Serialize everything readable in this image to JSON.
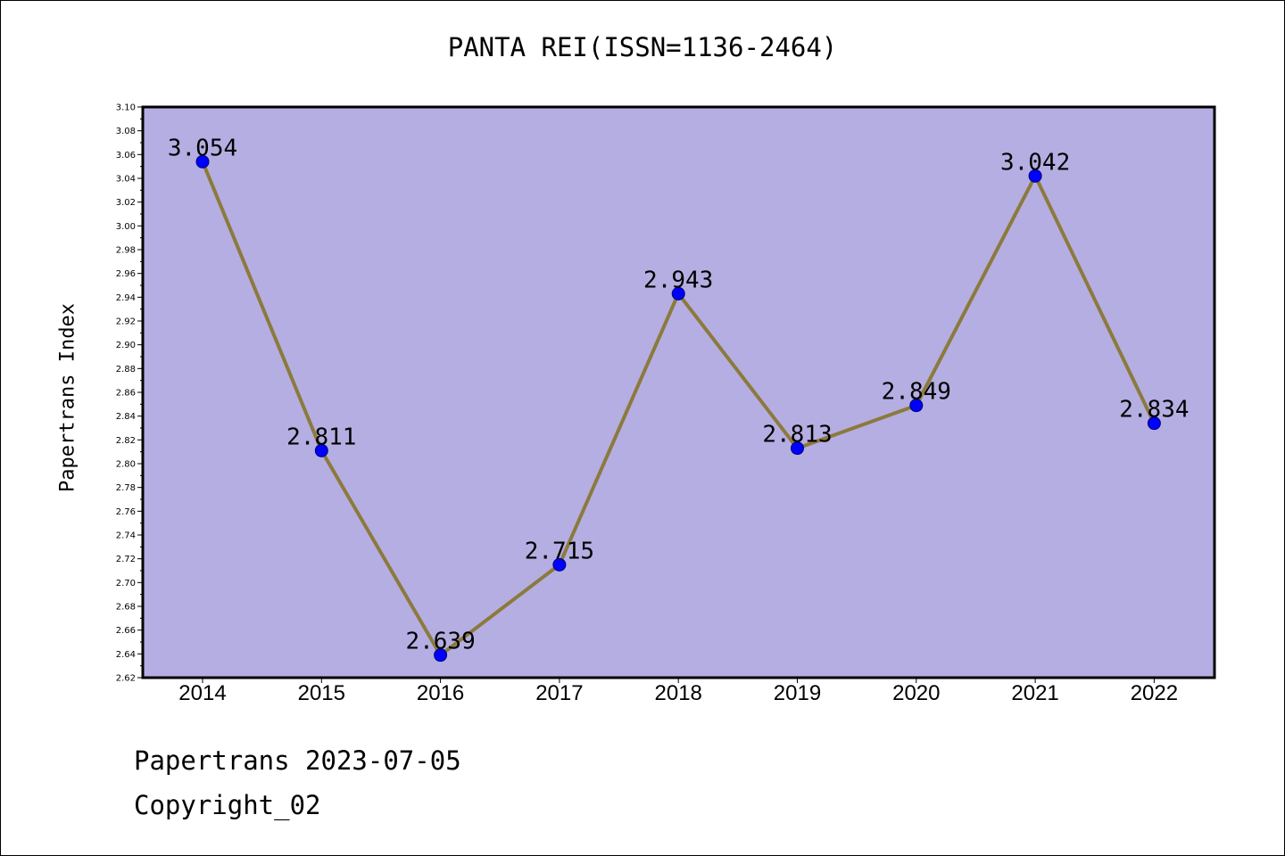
{
  "chart_data": {
    "type": "line",
    "title": "PANTA REI(ISSN=1136-2464)",
    "xlabel": "",
    "ylabel": "Papertrans Index",
    "x": [
      "2014",
      "2015",
      "2016",
      "2017",
      "2018",
      "2019",
      "2020",
      "2021",
      "2022"
    ],
    "series": [
      {
        "values": [
          3.054,
          2.811,
          2.639,
          2.715,
          2.943,
          2.813,
          2.849,
          3.042,
          2.834
        ],
        "data_labels": [
          "3.054",
          "2.811",
          "2.639",
          "2.715",
          "2.943",
          "2.813",
          "2.849",
          "3.042",
          "2.834"
        ]
      }
    ],
    "ylim": [
      2.62,
      3.1
    ],
    "ytick_step": 0.02,
    "yticks": [
      "2.62",
      "2.64",
      "2.66",
      "2.68",
      "2.70",
      "2.72",
      "2.74",
      "2.76",
      "2.78",
      "2.80",
      "2.82",
      "2.84",
      "2.86",
      "2.88",
      "2.90",
      "2.92",
      "2.94",
      "2.96",
      "2.98",
      "3.00",
      "3.02",
      "3.04",
      "3.06",
      "3.08",
      "3.10"
    ],
    "grid": false,
    "legend": "none",
    "colors": {
      "plot_background": "#b5aee2",
      "line": "#8b7a3c",
      "marker": "#0000ff"
    }
  },
  "footer": {
    "line1": "Papertrans 2023-07-05",
    "line2": "Copyright_02"
  }
}
